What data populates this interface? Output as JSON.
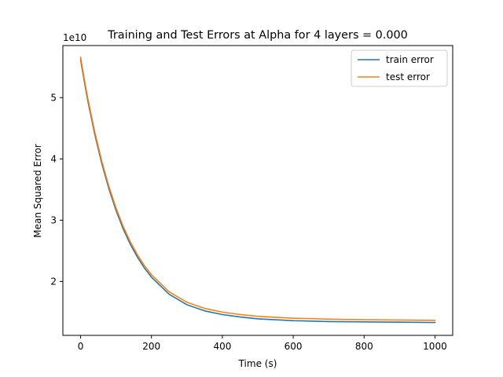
{
  "chart_data": {
    "type": "line",
    "title": "Training and Test Errors at Alpha for 4 layers = 0.000",
    "xlabel": "Time (s)",
    "ylabel": "Mean Squared Error",
    "y_offset_label": "1e10",
    "xlim": [
      -50,
      1050
    ],
    "ylim": [
      1.12,
      5.85
    ],
    "x_ticks": [
      0,
      200,
      400,
      600,
      800,
      1000
    ],
    "y_ticks": [
      2,
      3,
      4,
      5
    ],
    "grid": false,
    "legend_position": "top-right",
    "x": [
      0,
      10,
      20,
      40,
      60,
      80,
      100,
      120,
      140,
      160,
      180,
      200,
      250,
      300,
      350,
      400,
      450,
      500,
      600,
      700,
      800,
      900,
      1000
    ],
    "series": [
      {
        "name": "train error",
        "color": "#1f77b4",
        "values": [
          5.62,
          5.28,
          4.96,
          4.4,
          3.92,
          3.51,
          3.16,
          2.86,
          2.61,
          2.4,
          2.22,
          2.07,
          1.79,
          1.62,
          1.52,
          1.46,
          1.42,
          1.39,
          1.36,
          1.345,
          1.34,
          1.335,
          1.33
        ]
      },
      {
        "name": "test error",
        "color": "#ff7f0e",
        "values": [
          5.66,
          5.32,
          5.0,
          4.44,
          3.96,
          3.55,
          3.2,
          2.9,
          2.65,
          2.44,
          2.26,
          2.11,
          1.83,
          1.66,
          1.56,
          1.5,
          1.46,
          1.43,
          1.4,
          1.385,
          1.375,
          1.37,
          1.365
        ]
      }
    ]
  }
}
